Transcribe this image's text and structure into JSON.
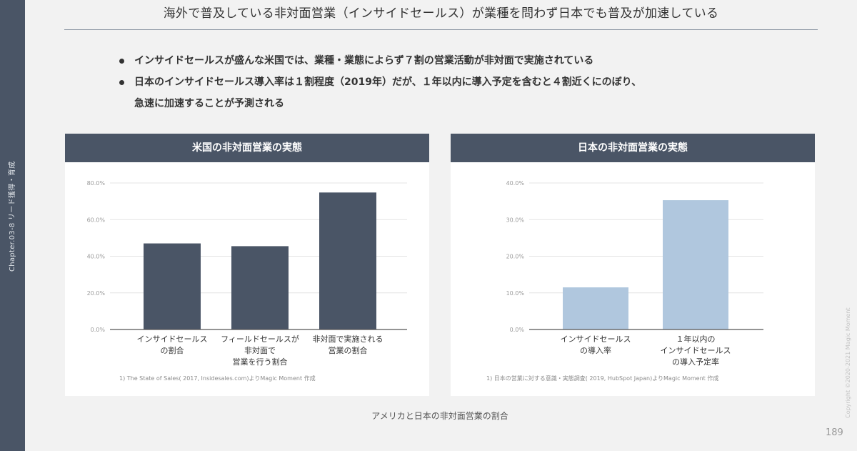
{
  "sidebar": {
    "text": "Chapter.03-8 リード獲得・育成"
  },
  "title": "海外で普及している非対面営業（インサイドセールス）が業種を問わず日本でも普及が加速している",
  "bullets": [
    "インサイドセールスが盛んな米国では、業種・業態によらず７割の営業活動が非対面で実施されている",
    "日本のインサイドセールス導入率は１割程度（2019年）だが、１年以内に導入予定を含むと４割近くにのぼり、",
    "急速に加速することが予測される"
  ],
  "chart_data": [
    {
      "type": "bar",
      "title": "米国の非対面営業の実態",
      "categories": [
        [
          "インサイドセールス",
          "の割合"
        ],
        [
          "フィールドセールスが",
          "非対面で",
          "営業を行う割合"
        ],
        [
          "非対面で実施される",
          "営業の割合"
        ]
      ],
      "values": [
        47.0,
        45.5,
        74.8
      ],
      "ylim": [
        0,
        80
      ],
      "yticks": [
        "0.0%",
        "20.0%",
        "40.0%",
        "60.0%",
        "80.0%"
      ],
      "tick_values": [
        0,
        20,
        40,
        60,
        80
      ],
      "bar_color": "#4a5566",
      "source": "1) The State of Sales( 2017, Insidesales.com)よりMagic Moment 作成",
      "grid": true
    },
    {
      "type": "bar",
      "title": "日本の非対面営業の実態",
      "categories": [
        [
          "インサイドセールス",
          "の導入率"
        ],
        [
          "１年以内の",
          "インサイドセールス",
          "の導入予定率"
        ]
      ],
      "values": [
        11.5,
        35.3
      ],
      "ylim": [
        0,
        40
      ],
      "yticks": [
        "0.0%",
        "10.0%",
        "20.0%",
        "30.0%",
        "40.0%"
      ],
      "tick_values": [
        0,
        10,
        20,
        30,
        40
      ],
      "bar_color": "#b0c7de",
      "source": "1) 日本の営業に対する意識・実態調査( 2019, HubSpot Japan)よりMagic Moment 作成",
      "grid": true
    }
  ],
  "caption": "アメリカと日本の非対面営業の割合",
  "copyright": "Copyright ©2020-2021 Magic Moment",
  "page_number": "189"
}
